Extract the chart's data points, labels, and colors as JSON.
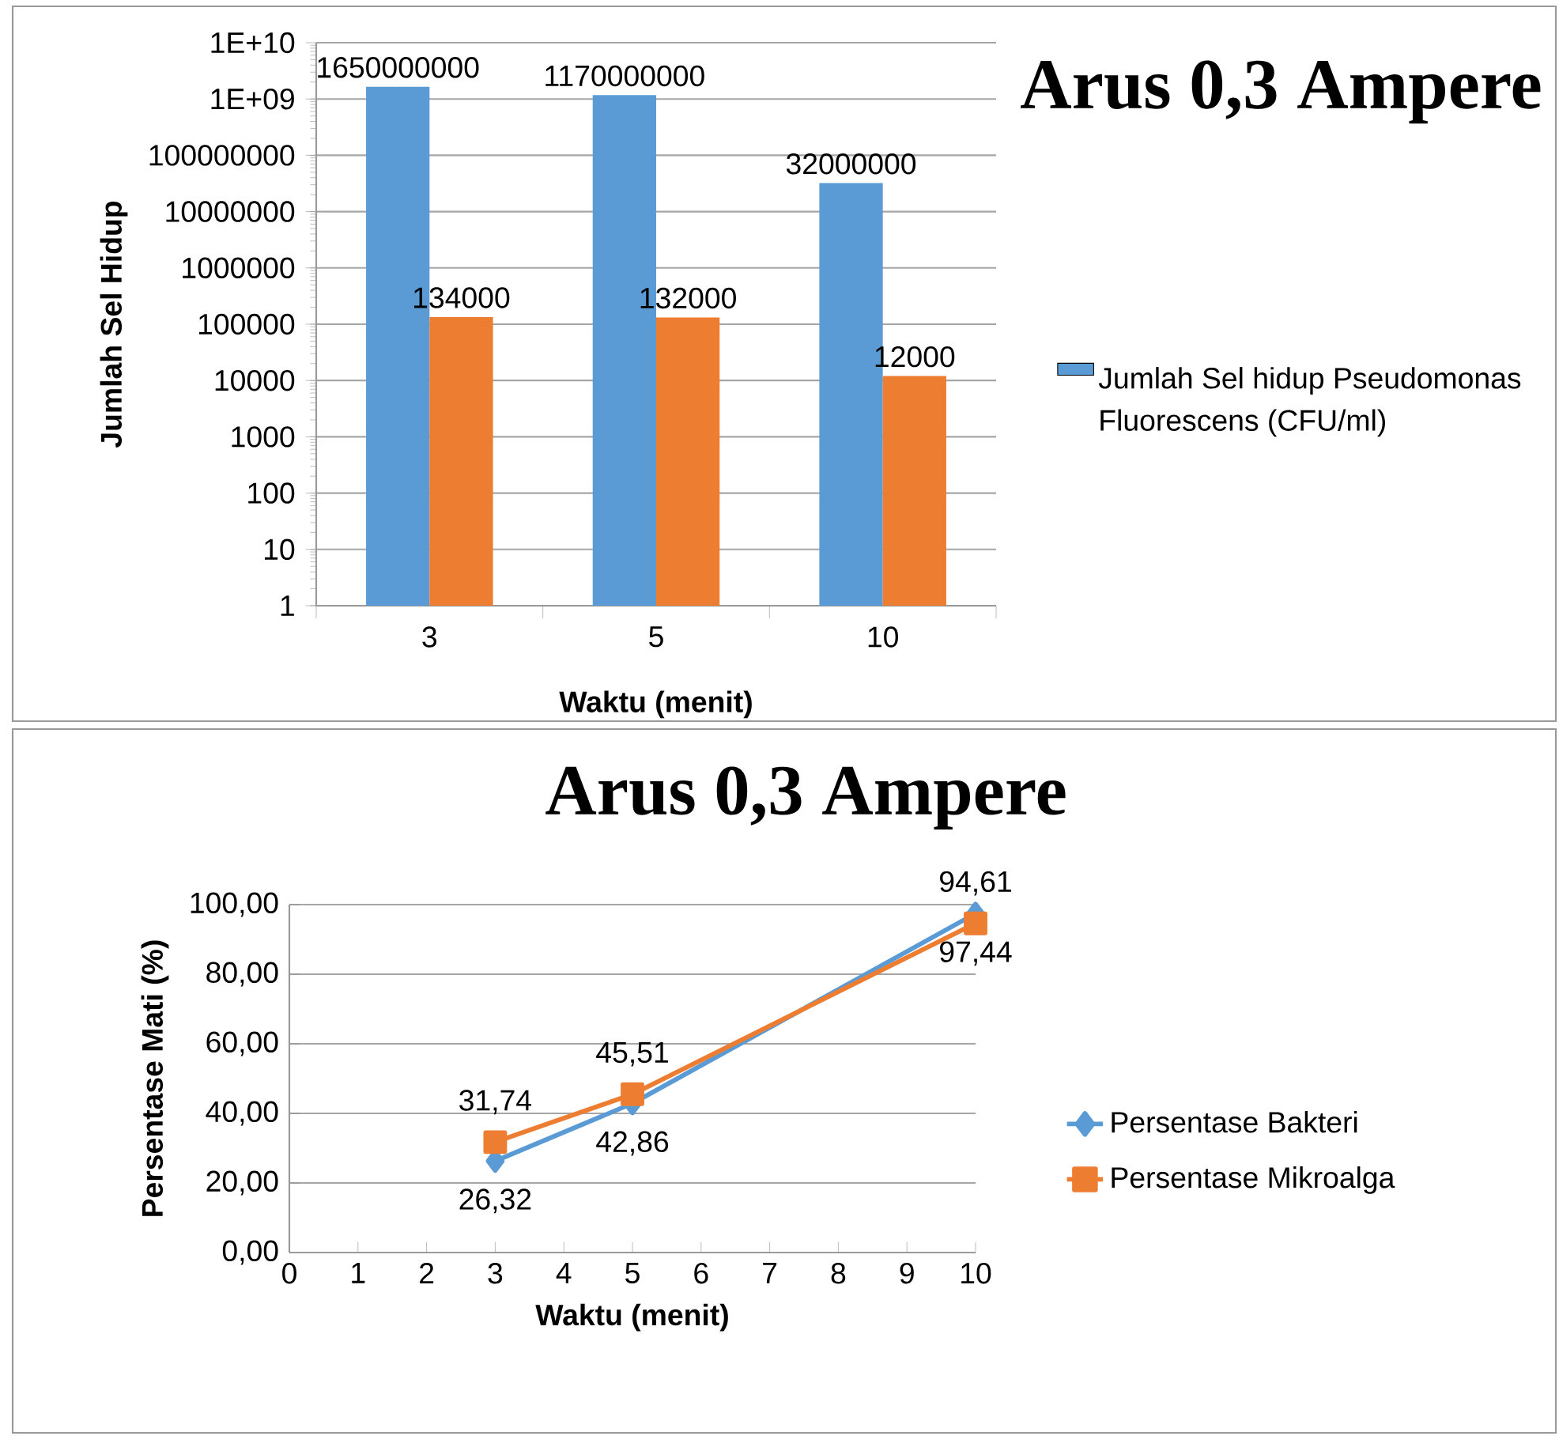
{
  "chart_data": [
    {
      "type": "bar",
      "title": "Arus 0,3 Ampere",
      "xlabel": "Waktu (menit)",
      "ylabel": "Jumlah Sel Hidup",
      "categories": [
        "3",
        "5",
        "10"
      ],
      "series": [
        {
          "name": "Jumlah Sel hidup Pseudomonas Fluorescens (CFU/ml)",
          "color": "#5b9bd5",
          "values": [
            1650000000,
            1170000000,
            32000000
          ]
        },
        {
          "color": "#ed7d31",
          "values": [
            134000,
            132000,
            12000
          ]
        }
      ],
      "log": true,
      "ylim": [
        1,
        10000000000
      ],
      "yticks": [
        1,
        10,
        100,
        1000,
        10000,
        100000,
        1000000,
        10000000,
        100000000,
        {
          "value": 1000000000,
          "label": "1E+09"
        },
        {
          "value": 10000000000,
          "label": "1E+10"
        }
      ],
      "grid": "y",
      "legend": "right",
      "data_labels": true
    },
    {
      "type": "line",
      "title": "Arus 0,3 Ampere",
      "xlabel": "Waktu (menit)",
      "ylabel": "Persentase Mati (%)",
      "x": [
        3,
        5,
        10
      ],
      "series": [
        {
          "name": "Persentase Bakteri",
          "color": "#5b9bd5",
          "marker": "diamond",
          "values": [
            26.32,
            42.86,
            97.44
          ],
          "value_labels": [
            "26,32",
            "42,86",
            "97,44"
          ]
        },
        {
          "name": "Persentase Mikroalga",
          "color": "#ed7d31",
          "marker": "square",
          "values": [
            31.74,
            45.51,
            94.61
          ],
          "value_labels": [
            "31,74",
            "45,51",
            "94,61"
          ]
        }
      ],
      "xlim": [
        0,
        10
      ],
      "xticks": [
        0,
        1,
        2,
        3,
        4,
        5,
        6,
        7,
        8,
        9,
        10
      ],
      "ylim": [
        0,
        100
      ],
      "yticks": [
        {
          "value": 0,
          "label": "0,00"
        },
        {
          "value": 20,
          "label": "20,00"
        },
        {
          "value": 40,
          "label": "40,00"
        },
        {
          "value": 60,
          "label": "60,00"
        },
        {
          "value": 80,
          "label": "80,00"
        },
        {
          "value": 100,
          "label": "100,00"
        }
      ],
      "grid": "y",
      "legend": "right"
    }
  ]
}
